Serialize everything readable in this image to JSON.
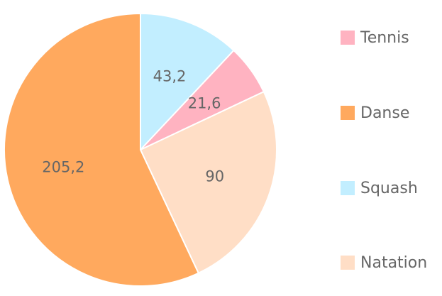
{
  "chart_data": {
    "type": "pie",
    "categories": [
      "Tennis",
      "Danse",
      "Squash",
      "Natation"
    ],
    "values": [
      21.6,
      205.2,
      43.2,
      90
    ],
    "value_labels": [
      "21,6",
      "205,2",
      "43,2",
      "90"
    ],
    "colors": [
      "#ffb3c1",
      "#ffa95e",
      "#c2eeff",
      "#ffdec6"
    ],
    "slice_order": [
      "Squash",
      "Tennis",
      "Natation",
      "Danse"
    ],
    "start_angle": "top, clockwise",
    "legend_position": "right"
  }
}
